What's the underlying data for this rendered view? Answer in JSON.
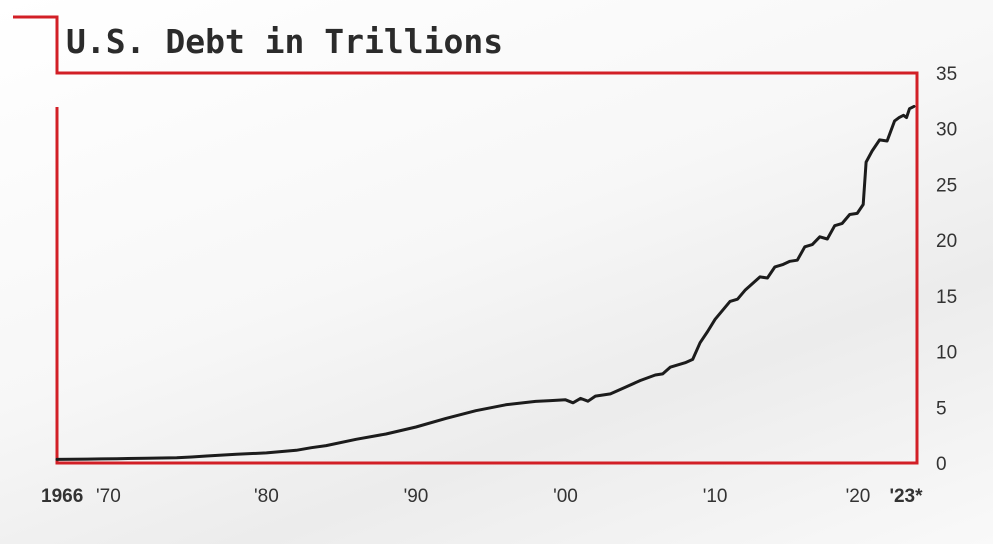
{
  "colors": {
    "frame": "#d21f26",
    "line": "#1c1c1c",
    "text": "#333333"
  },
  "chart_data": {
    "type": "line",
    "title": "U.S. Debt in Trillions",
    "xlabel": "",
    "ylabel": "",
    "xlim": [
      1966,
      2023.5
    ],
    "ylim": [
      0,
      35
    ],
    "grid": false,
    "y_axis_side": "right",
    "x_tick_labels": [
      {
        "x": 1966,
        "label": "1966",
        "bold": true
      },
      {
        "x": 1970,
        "label": "'70",
        "bold": false
      },
      {
        "x": 1980,
        "label": "'80",
        "bold": false
      },
      {
        "x": 1990,
        "label": "'90",
        "bold": false
      },
      {
        "x": 2000,
        "label": "'00",
        "bold": false
      },
      {
        "x": 2010,
        "label": "'10",
        "bold": false
      },
      {
        "x": 2020,
        "label": "'20",
        "bold": false
      },
      {
        "x": 2023,
        "label": "'23*",
        "bold": true
      }
    ],
    "y_ticks": [
      0,
      5,
      10,
      15,
      20,
      25,
      30,
      35
    ],
    "series": [
      {
        "x": [
          1966,
          1968,
          1969,
          1970,
          1972,
          1974,
          1975,
          1976,
          1977,
          1978,
          1980,
          1982,
          1983,
          1984,
          1986,
          1988,
          1990,
          1992,
          1994,
          1996,
          1998,
          1999,
          2000,
          2000.5,
          2001,
          2001.5,
          2002,
          2003,
          2004,
          2005,
          2006,
          2006.5,
          2007,
          2008,
          2008.5,
          2009,
          2009.5,
          2010,
          2011,
          2011.5,
          2012,
          2013,
          2013.5,
          2014,
          2014.5,
          2015,
          2015.5,
          2016,
          2016.5,
          2017,
          2017.5,
          2018,
          2018.5,
          2019,
          2019.5,
          2019.9,
          2020.1,
          2020.5,
          2021,
          2021.5,
          2022,
          2022.3,
          2022.6,
          2022.8,
          2023,
          2023.3
        ],
        "y": [
          0.32,
          0.35,
          0.37,
          0.39,
          0.43,
          0.48,
          0.54,
          0.63,
          0.71,
          0.78,
          0.91,
          1.14,
          1.37,
          1.56,
          2.13,
          2.6,
          3.23,
          4.0,
          4.69,
          5.22,
          5.53,
          5.6,
          5.67,
          5.4,
          5.8,
          5.55,
          6.0,
          6.2,
          6.8,
          7.4,
          7.9,
          8.0,
          8.6,
          9.0,
          9.3,
          10.8,
          11.8,
          12.9,
          14.5,
          14.7,
          15.5,
          16.7,
          16.6,
          17.6,
          17.8,
          18.1,
          18.2,
          19.4,
          19.6,
          20.3,
          20.1,
          21.3,
          21.5,
          22.3,
          22.4,
          23.2,
          27.0,
          28.0,
          29.0,
          28.9,
          30.7,
          31.0,
          31.2,
          31.0,
          31.8,
          32.0
        ]
      }
    ]
  }
}
